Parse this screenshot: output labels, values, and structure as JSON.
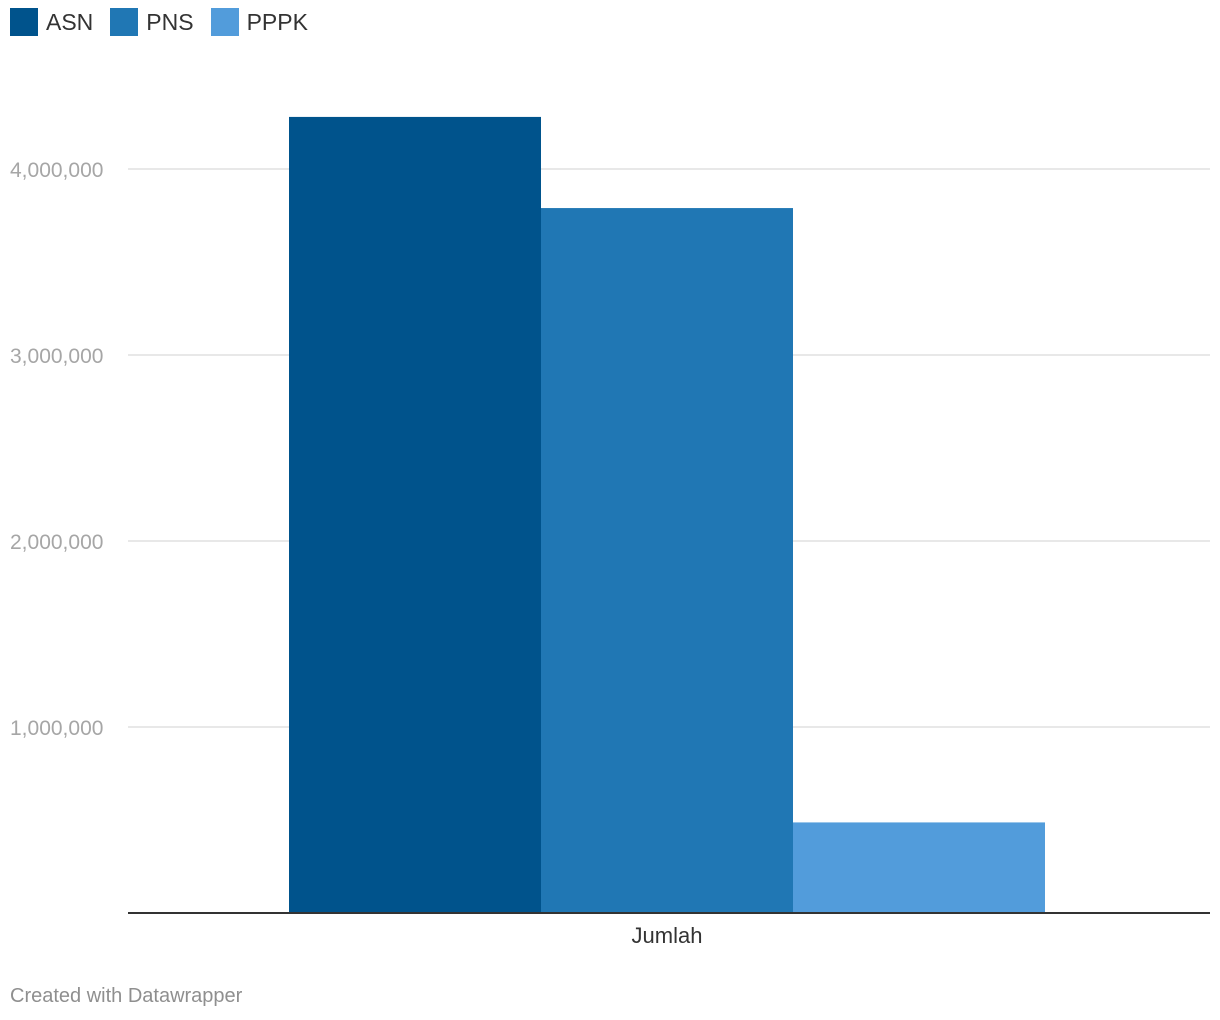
{
  "chart_data": {
    "type": "bar",
    "title": "",
    "xlabel": "",
    "ylabel": "",
    "categories": [
      "Jumlah"
    ],
    "series": [
      {
        "name": "ASN",
        "color": "#00538c",
        "values": [
          4280000
        ]
      },
      {
        "name": "PNS",
        "color": "#2077b4",
        "values": [
          3790000
        ]
      },
      {
        "name": "PPPK",
        "color": "#529cdb",
        "values": [
          487000
        ]
      }
    ],
    "ylim": [
      0,
      4400000
    ],
    "yticks": [
      1000000,
      2000000,
      3000000,
      4000000
    ],
    "ytick_labels": [
      "1,000,000",
      "2,000,000",
      "3,000,000",
      "4,000,000"
    ],
    "grid": true,
    "legend_position": "top-left"
  },
  "legend": {
    "items": [
      {
        "label": "ASN",
        "color": "#00538c"
      },
      {
        "label": "PNS",
        "color": "#2077b4"
      },
      {
        "label": "PPPK",
        "color": "#529cdb"
      }
    ]
  },
  "footer": {
    "credit": "Created with Datawrapper"
  }
}
